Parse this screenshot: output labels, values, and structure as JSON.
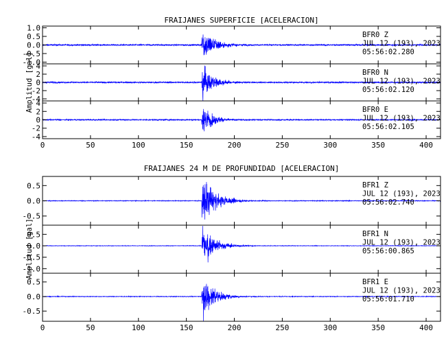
{
  "chart_data": [
    {
      "type": "line",
      "title": "FRAIJANES SUPERFICIE [ACELERACION]",
      "ylabel": "Amplitud [gal]",
      "xlim": [
        0,
        415
      ],
      "xticks": [
        0,
        50,
        100,
        150,
        200,
        250,
        300,
        350,
        400
      ],
      "line_color": "#0000ff",
      "series": [
        {
          "name": "BFR0 Z",
          "label_lines": [
            "BFR0   Z",
            "JUL 12 (193), 2023",
            "05:56:02.280"
          ],
          "ylim": [
            -1.1,
            1.1
          ],
          "yticks": [
            "1.0",
            "0.5",
            "0.0",
            "-0.5",
            "-1.0"
          ],
          "noise": 0.03,
          "event_onset": 166,
          "peak": 1.05,
          "decay": 12
        },
        {
          "name": "BFR0 N",
          "label_lines": [
            "BFR0   N",
            "JUL 12 (193), 2023",
            "05:56:02.120"
          ],
          "ylim": [
            -4.5,
            4.5
          ],
          "yticks": [
            "4",
            "2",
            "0",
            "-2",
            "-4"
          ],
          "noise": 0.12,
          "event_onset": 166,
          "peak": 4.3,
          "decay": 11
        },
        {
          "name": "BFR0 E",
          "label_lines": [
            "BFR0   E",
            "JUL 12 (193), 2023",
            "05:56:02.105"
          ],
          "ylim": [
            -4.5,
            4.5
          ],
          "yticks": [
            "4",
            "2",
            "0",
            "-2",
            "-4"
          ],
          "noise": 0.1,
          "event_onset": 166,
          "peak": 3.6,
          "decay": 10
        }
      ]
    },
    {
      "type": "line",
      "title": "FRAIJANES 24 M DE PROFUNDIDAD [ACELERACION]",
      "ylabel": "Amplitud [gal]",
      "xlim": [
        0,
        415
      ],
      "xticks": [
        0,
        50,
        100,
        150,
        200,
        250,
        300,
        350,
        400
      ],
      "line_color": "#0000ff",
      "series": [
        {
          "name": "BFR1 Z",
          "label_lines": [
            "BFR1   Z",
            "JUL 12 (193), 2023",
            "05:56:02.740"
          ],
          "ylim": [
            -0.8,
            0.8
          ],
          "yticks": [
            "0.5",
            "0.0",
            "-0.5"
          ],
          "noise": 0.008,
          "event_onset": 166,
          "peak": 0.75,
          "decay": 14
        },
        {
          "name": "BFR1 N",
          "label_lines": [
            "BFR1   N",
            "JUL 12 (193), 2023",
            "05:56:00.865"
          ],
          "ylim": [
            -1.2,
            0.9
          ],
          "yticks": [
            "0.5",
            "0.0",
            "-0.5",
            "-1.0"
          ],
          "noise": 0.008,
          "event_onset": 166,
          "peak": 0.85,
          "decay": 13
        },
        {
          "name": "BFR1 E",
          "label_lines": [
            "BFR1   E",
            "JUL 12 (193), 2023",
            "05:56:01.710"
          ],
          "ylim": [
            -0.85,
            0.8
          ],
          "yticks": [
            "0.5",
            "0.0",
            "-0.5"
          ],
          "noise": 0.008,
          "event_onset": 166,
          "peak": 0.75,
          "decay": 12
        }
      ]
    }
  ]
}
